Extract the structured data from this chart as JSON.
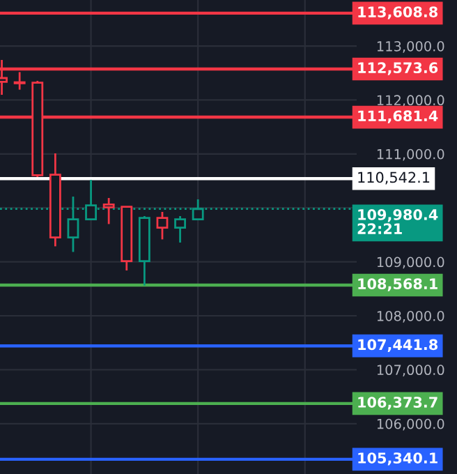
{
  "chart_data": {
    "type": "candlestick",
    "categories": [
      null,
      null,
      null,
      null,
      null,
      null,
      null,
      null,
      null,
      null,
      null,
      null,
      null,
      null,
      null,
      null,
      null,
      null,
      null,
      null
    ],
    "ohlc": [
      [
        112406,
        112742,
        112096,
        112336
      ],
      [
        112328,
        112517,
        112191,
        112310
      ],
      [
        112320,
        112354,
        110571,
        110605
      ],
      [
        110615,
        111010,
        109287,
        109452
      ],
      [
        109452,
        110209,
        109183,
        109788
      ],
      [
        109788,
        110519,
        109788,
        110047
      ],
      [
        110062,
        110183,
        109700,
        110010
      ],
      [
        110021,
        110029,
        108840,
        109013
      ],
      [
        109013,
        109848,
        108560,
        109814
      ],
      [
        109814,
        109925,
        109416,
        109633
      ],
      [
        109633,
        109848,
        109357,
        109788
      ],
      [
        109788,
        110158,
        109788,
        109980
      ],
      null,
      null,
      null,
      null,
      null,
      null,
      null,
      null
    ],
    "colors": [
      "#f23645",
      "#f23645",
      "#f23645",
      "#f23645",
      "#089981",
      "#089981",
      "#f23645",
      "#f23645",
      "#089981",
      "#f23645",
      "#089981",
      "#089981",
      null,
      null,
      null,
      null,
      null,
      null,
      null,
      null
    ],
    "ylim": [
      105067,
      113853
    ],
    "yticks": [
      {
        "value": 106000,
        "label": "106,000.0"
      },
      {
        "value": 107000,
        "label": "107,000.0"
      },
      {
        "value": 108000,
        "label": "108,000.0"
      },
      {
        "value": 109000,
        "label": "109,000.0"
      },
      {
        "value": 110000,
        "label": null
      },
      {
        "value": 111000,
        "label": "111,000.0"
      },
      {
        "value": 112000,
        "label": "112,000.0"
      },
      {
        "value": 113000,
        "label": "113,000.0"
      }
    ],
    "tick_labels": "y",
    "grid": true,
    "ref_lines": [
      {
        "axis": "y",
        "value": 113608.8,
        "label": "113,608.8",
        "color": "#f23645"
      },
      {
        "axis": "y",
        "value": 112573.6,
        "label": "112,573.6",
        "color": "#f23645"
      },
      {
        "axis": "y",
        "value": 111681.4,
        "label": "111,681.4",
        "color": "#f23645"
      },
      {
        "axis": "y",
        "value": 110542.1,
        "label": "110,542.1",
        "color": "#ffffff"
      },
      {
        "axis": "y",
        "value": 109980.4,
        "label": "109,980.4\n22:21",
        "color": "#089981",
        "line_style": "dotted"
      },
      {
        "axis": "y",
        "value": 108568.1,
        "label": "108,568.1",
        "color": "#4caf50"
      },
      {
        "axis": "y",
        "value": 107441.8,
        "label": "107,441.8",
        "color": "#2962ff"
      },
      {
        "axis": "y",
        "value": 106373.7,
        "label": "106,373.7",
        "color": "#4caf50"
      },
      {
        "axis": "y",
        "value": 105340.1,
        "label": "105,340.1",
        "color": "#2962ff"
      }
    ]
  }
}
